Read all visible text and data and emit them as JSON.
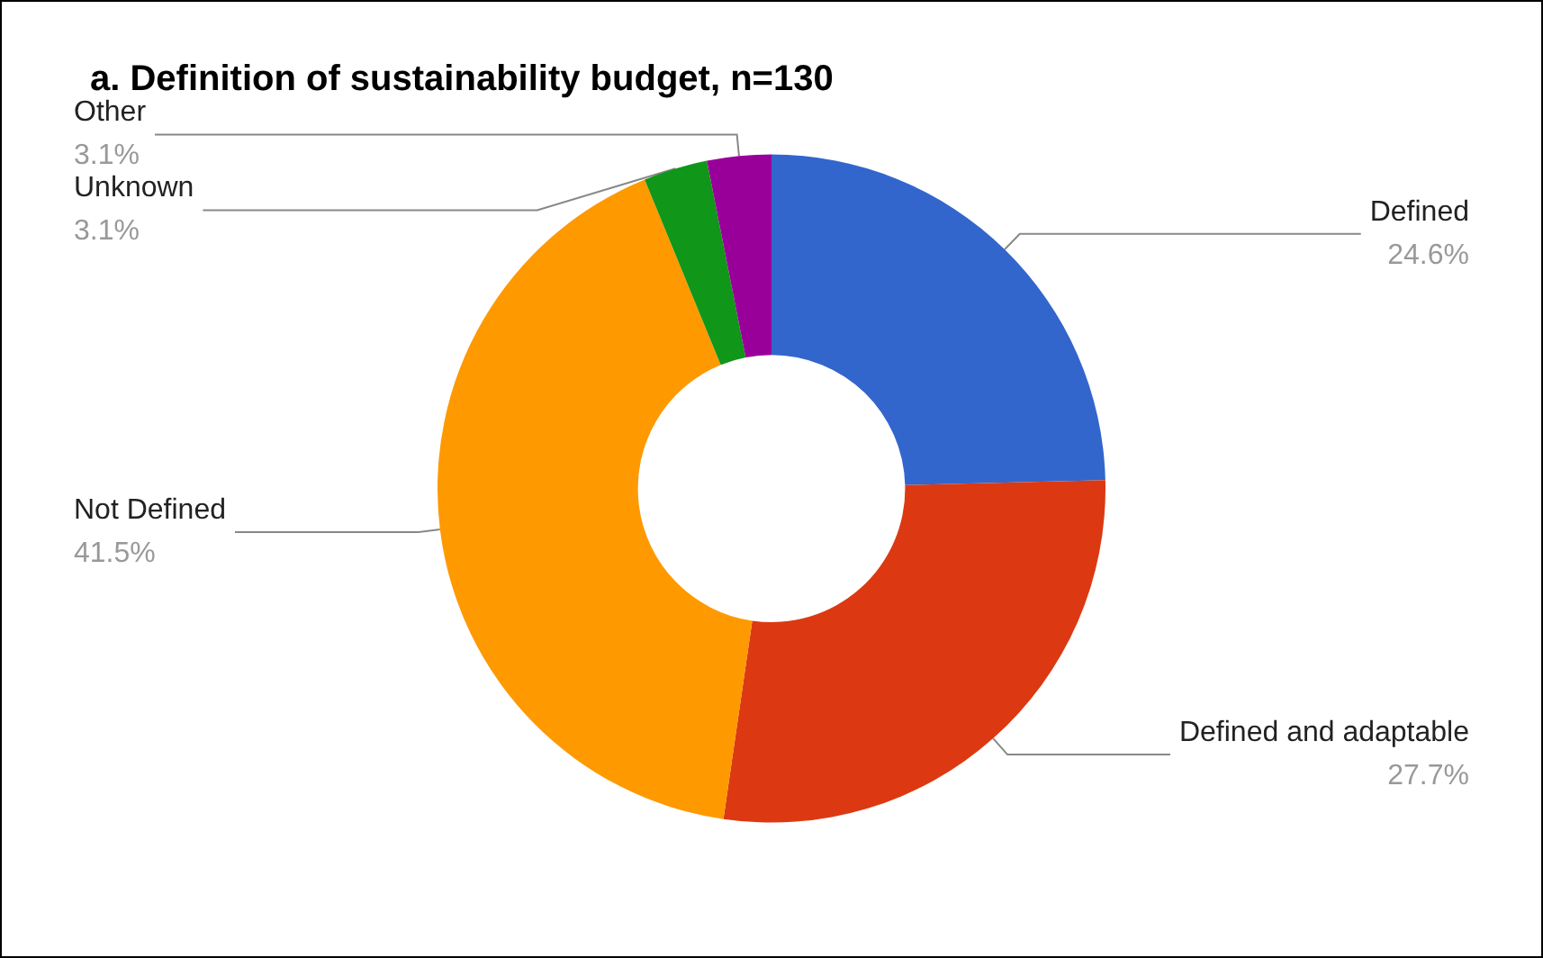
{
  "chart_data": {
    "type": "donut",
    "title": "a. Definition of sustainability budget, n=130",
    "categories": [
      "Defined",
      "Defined and adaptable",
      "Not Defined",
      "Unknown",
      "Other"
    ],
    "values": [
      24.6,
      27.7,
      41.5,
      3.1,
      3.1
    ],
    "colors": [
      "#3366cc",
      "#dc3912",
      "#ff9900",
      "#109618",
      "#990099"
    ],
    "value_labels": [
      "24.6%",
      "27.7%",
      "41.5%",
      "3.1%",
      "3.1%"
    ],
    "legend": false
  }
}
